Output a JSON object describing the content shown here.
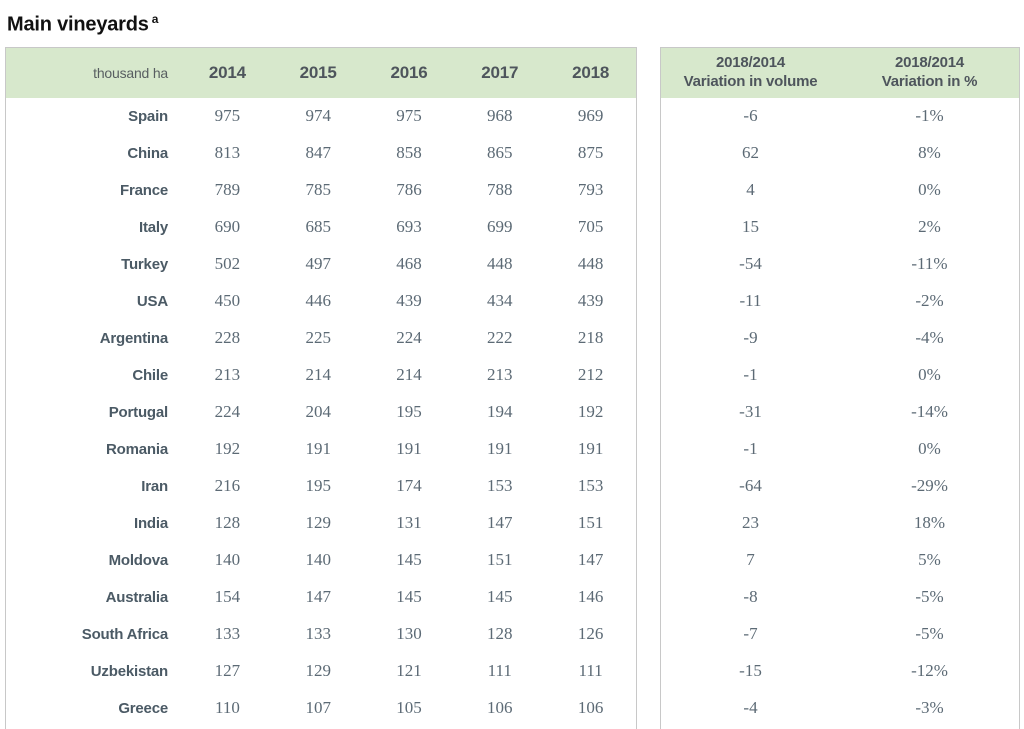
{
  "page_title": {
    "text": "Main vineyards",
    "superscript": "a"
  },
  "left_table": {
    "unit_label": "thousand ha",
    "year_headers": [
      "2014",
      "2015",
      "2016",
      "2017",
      "2018"
    ]
  },
  "right_table": {
    "volume_header": {
      "line1": "2018/2014",
      "line2": "Variation in volume"
    },
    "percent_header": {
      "line1": "2018/2014",
      "line2": "Variation in %"
    }
  },
  "rows": [
    {
      "country": "Spain",
      "values": [
        "975",
        "974",
        "975",
        "968",
        "969"
      ],
      "variation_volume": "-6",
      "variation_percent": "-1%"
    },
    {
      "country": "China",
      "values": [
        "813",
        "847",
        "858",
        "865",
        "875"
      ],
      "variation_volume": "62",
      "variation_percent": "8%"
    },
    {
      "country": "France",
      "values": [
        "789",
        "785",
        "786",
        "788",
        "793"
      ],
      "variation_volume": "4",
      "variation_percent": "0%"
    },
    {
      "country": "Italy",
      "values": [
        "690",
        "685",
        "693",
        "699",
        "705"
      ],
      "variation_volume": "15",
      "variation_percent": "2%"
    },
    {
      "country": "Turkey",
      "values": [
        "502",
        "497",
        "468",
        "448",
        "448"
      ],
      "variation_volume": "-54",
      "variation_percent": "-11%"
    },
    {
      "country": "USA",
      "values": [
        "450",
        "446",
        "439",
        "434",
        "439"
      ],
      "variation_volume": "-11",
      "variation_percent": "-2%"
    },
    {
      "country": "Argentina",
      "values": [
        "228",
        "225",
        "224",
        "222",
        "218"
      ],
      "variation_volume": "-9",
      "variation_percent": "-4%"
    },
    {
      "country": "Chile",
      "values": [
        "213",
        "214",
        "214",
        "213",
        "212"
      ],
      "variation_volume": "-1",
      "variation_percent": "0%"
    },
    {
      "country": "Portugal",
      "values": [
        "224",
        "204",
        "195",
        "194",
        "192"
      ],
      "variation_volume": "-31",
      "variation_percent": "-14%"
    },
    {
      "country": "Romania",
      "values": [
        "192",
        "191",
        "191",
        "191",
        "191"
      ],
      "variation_volume": "-1",
      "variation_percent": "0%"
    },
    {
      "country": "Iran",
      "values": [
        "216",
        "195",
        "174",
        "153",
        "153"
      ],
      "variation_volume": "-64",
      "variation_percent": "-29%"
    },
    {
      "country": "India",
      "values": [
        "128",
        "129",
        "131",
        "147",
        "151"
      ],
      "variation_volume": "23",
      "variation_percent": "18%"
    },
    {
      "country": "Moldova",
      "values": [
        "140",
        "140",
        "145",
        "151",
        "147"
      ],
      "variation_volume": "7",
      "variation_percent": "5%"
    },
    {
      "country": "Australia",
      "values": [
        "154",
        "147",
        "145",
        "145",
        "146"
      ],
      "variation_volume": "-8",
      "variation_percent": "-5%"
    },
    {
      "country": "South Africa",
      "values": [
        "133",
        "133",
        "130",
        "128",
        "126"
      ],
      "variation_volume": "-7",
      "variation_percent": "-5%"
    },
    {
      "country": "Uzbekistan",
      "values": [
        "127",
        "129",
        "121",
        "111",
        "111"
      ],
      "variation_volume": "-15",
      "variation_percent": "-12%"
    },
    {
      "country": "Greece",
      "values": [
        "110",
        "107",
        "105",
        "106",
        "106"
      ],
      "variation_volume": "-4",
      "variation_percent": "-3%"
    }
  ],
  "colors": {
    "header_bg": "#d7e8cc",
    "panel_border": "#c8c8c8",
    "header_text": "#4e555c",
    "country_text": "#4b5a65",
    "number_text": "#5c6a75",
    "title_text": "#111111"
  },
  "chart_data": {
    "type": "table",
    "title": "Main vineyards (thousand ha)",
    "columns": [
      "thousand ha",
      "2014",
      "2015",
      "2016",
      "2017",
      "2018",
      "2018/2014 Variation in volume",
      "2018/2014 Variation in %"
    ],
    "rows": [
      [
        "Spain",
        975,
        974,
        975,
        968,
        969,
        -6,
        "-1%"
      ],
      [
        "China",
        813,
        847,
        858,
        865,
        875,
        62,
        "8%"
      ],
      [
        "France",
        789,
        785,
        786,
        788,
        793,
        4,
        "0%"
      ],
      [
        "Italy",
        690,
        685,
        693,
        699,
        705,
        15,
        "2%"
      ],
      [
        "Turkey",
        502,
        497,
        468,
        448,
        448,
        -54,
        "-11%"
      ],
      [
        "USA",
        450,
        446,
        439,
        434,
        439,
        -11,
        "-2%"
      ],
      [
        "Argentina",
        228,
        225,
        224,
        222,
        218,
        -9,
        "-4%"
      ],
      [
        "Chile",
        213,
        214,
        214,
        213,
        212,
        -1,
        "0%"
      ],
      [
        "Portugal",
        224,
        204,
        195,
        194,
        192,
        -31,
        "-14%"
      ],
      [
        "Romania",
        192,
        191,
        191,
        191,
        191,
        -1,
        "0%"
      ],
      [
        "Iran",
        216,
        195,
        174,
        153,
        153,
        -64,
        "-29%"
      ],
      [
        "India",
        128,
        129,
        131,
        147,
        151,
        23,
        "18%"
      ],
      [
        "Moldova",
        140,
        140,
        145,
        151,
        147,
        7,
        "5%"
      ],
      [
        "Australia",
        154,
        147,
        145,
        145,
        146,
        -8,
        "-5%"
      ],
      [
        "South Africa",
        133,
        133,
        130,
        128,
        126,
        -7,
        "-5%"
      ],
      [
        "Uzbekistan",
        127,
        129,
        121,
        111,
        111,
        -15,
        "-12%"
      ],
      [
        "Greece",
        110,
        107,
        105,
        106,
        106,
        -4,
        "-3%"
      ]
    ]
  }
}
